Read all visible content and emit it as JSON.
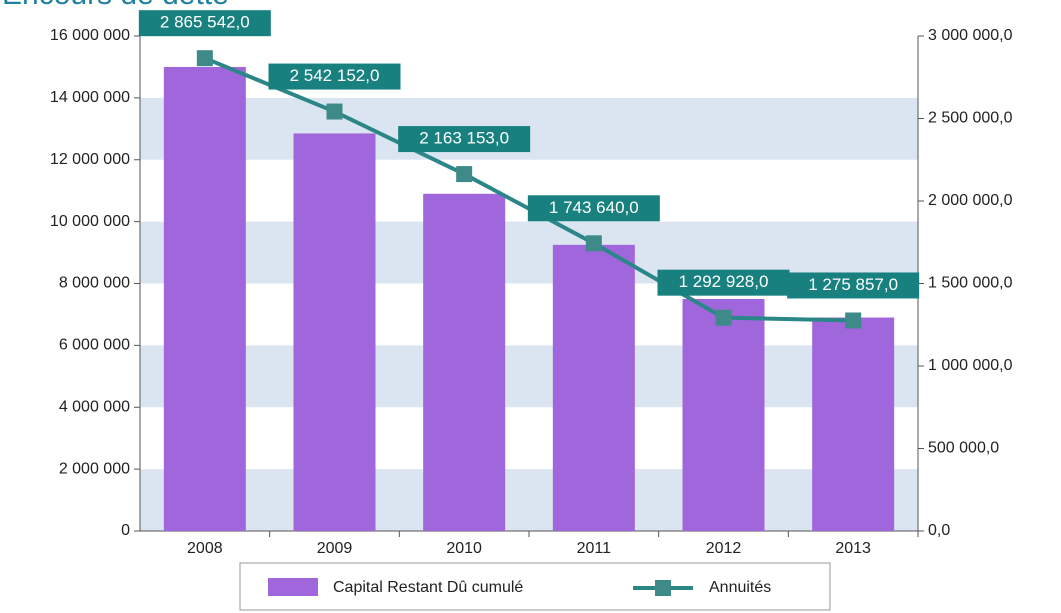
{
  "chart_data": {
    "type": "bar",
    "title": "Encours de dette",
    "categories": [
      "2008",
      "2009",
      "2010",
      "2011",
      "2012",
      "2013"
    ],
    "series": [
      {
        "name": "Capital Restant Dû cumulé",
        "type": "bar",
        "color": "#a066dc",
        "values": [
          15000000,
          12850000,
          10900000,
          9250000,
          7500000,
          6900000
        ]
      },
      {
        "name": "Annuités",
        "type": "line",
        "axis": "y2",
        "color": "#2b8787",
        "marker_color": "#3e8a88",
        "label_color": "#18807e",
        "values": [
          2865542,
          2542152,
          2163153,
          1743640,
          1292928,
          1275857
        ],
        "value_labels": [
          "2 865 542,0",
          "2 542 152,0",
          "2 163 153,0",
          "1 743 640,0",
          "1 292 928,0",
          "1 275 857,0"
        ]
      }
    ],
    "ylim": [
      0,
      16000000
    ],
    "yticks": [
      {
        "value": 0,
        "label": "0"
      },
      {
        "value": 2000000,
        "label": "2 000 000"
      },
      {
        "value": 4000000,
        "label": "4 000 000"
      },
      {
        "value": 6000000,
        "label": "6 000 000"
      },
      {
        "value": 8000000,
        "label": "8 000 000"
      },
      {
        "value": 10000000,
        "label": "10 000 000"
      },
      {
        "value": 12000000,
        "label": "12 000 000"
      },
      {
        "value": 14000000,
        "label": "14 000 000"
      },
      {
        "value": 16000000,
        "label": "16 000 000"
      }
    ],
    "y2lim": [
      0,
      3000000
    ],
    "y2ticks": [
      {
        "value": 0,
        "label": "0,0"
      },
      {
        "value": 500000,
        "label": "500 000,0"
      },
      {
        "value": 1000000,
        "label": "1 000 000,0"
      },
      {
        "value": 1500000,
        "label": "1 500 000,0"
      },
      {
        "value": 2000000,
        "label": "2 000 000,0"
      },
      {
        "value": 2500000,
        "label": "2 500 000,0"
      },
      {
        "value": 3000000,
        "label": "3 000 000,0"
      }
    ],
    "grid": "bands",
    "band_color": "#dbe5f1",
    "legend": "bottom"
  }
}
